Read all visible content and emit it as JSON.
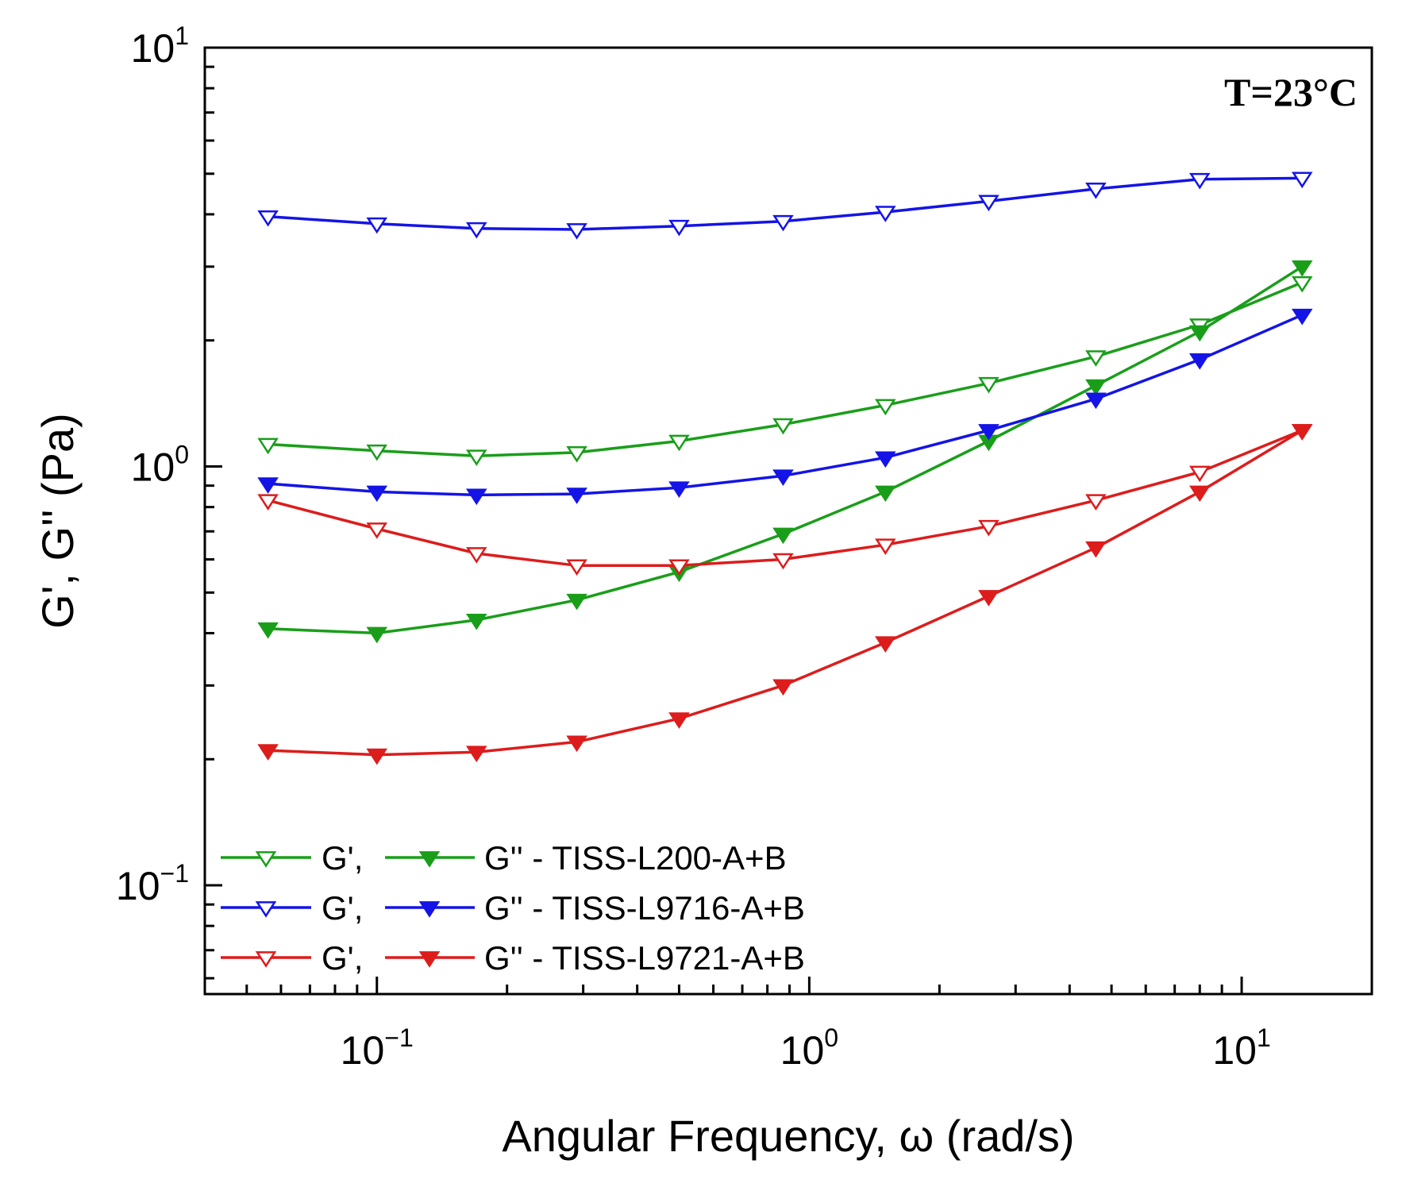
{
  "chart_data": {
    "type": "line",
    "title": "",
    "xlabel": "Angular Frequency, ω (rad/s)",
    "ylabel": "G', G'' (Pa)",
    "xscale": "log",
    "yscale": "log",
    "xlim": [
      0.04,
      20
    ],
    "ylim": [
      0.055,
      10
    ],
    "x_ticks": [
      {
        "value": 0.1,
        "base": "10",
        "exp": "−1"
      },
      {
        "value": 1,
        "base": "10",
        "exp": "0"
      },
      {
        "value": 10,
        "base": "10",
        "exp": "1"
      }
    ],
    "y_ticks": [
      {
        "value": 0.1,
        "base": "10",
        "exp": "−1"
      },
      {
        "value": 1,
        "base": "10",
        "exp": "0"
      },
      {
        "value": 10,
        "base": "10",
        "exp": "1"
      }
    ],
    "annotation": "T=23°C",
    "legend_position": "bottom-left",
    "x": [
      0.056,
      0.1,
      0.17,
      0.29,
      0.5,
      0.87,
      1.5,
      2.6,
      4.6,
      8.0,
      13.8
    ],
    "series": [
      {
        "name": "G' - TISS-L200-A+B",
        "color": "#1a9e1a",
        "marker": "open-triangle-down",
        "values": [
          1.13,
          1.09,
          1.06,
          1.08,
          1.15,
          1.26,
          1.4,
          1.58,
          1.83,
          2.18,
          2.75
        ]
      },
      {
        "name": "G'' - TISS-L200-A+B",
        "color": "#1a9e1a",
        "marker": "filled-triangle-down",
        "values": [
          0.41,
          0.4,
          0.43,
          0.48,
          0.56,
          0.69,
          0.87,
          1.15,
          1.56,
          2.1,
          3.0
        ]
      },
      {
        "name": "G' - TISS-L9716-A+B",
        "color": "#1414e6",
        "marker": "open-triangle-down",
        "values": [
          3.95,
          3.8,
          3.7,
          3.68,
          3.75,
          3.85,
          4.05,
          4.3,
          4.6,
          4.85,
          4.88
        ]
      },
      {
        "name": "G'' - TISS-L9716-A+B",
        "color": "#1414e6",
        "marker": "filled-triangle-down",
        "values": [
          0.91,
          0.87,
          0.855,
          0.86,
          0.89,
          0.95,
          1.05,
          1.22,
          1.45,
          1.8,
          2.3
        ]
      },
      {
        "name": "G' - TISS-L9721-A+B",
        "color": "#dd1c1c",
        "marker": "open-triangle-down",
        "values": [
          0.83,
          0.71,
          0.62,
          0.58,
          0.58,
          0.6,
          0.65,
          0.72,
          0.83,
          0.97,
          1.22
        ]
      },
      {
        "name": "G'' - TISS-L9721-A+B",
        "color": "#dd1c1c",
        "marker": "filled-triangle-down",
        "values": [
          0.21,
          0.205,
          0.208,
          0.22,
          0.25,
          0.3,
          0.38,
          0.49,
          0.64,
          0.87,
          1.22
        ]
      }
    ],
    "legend": [
      {
        "g1": "G',",
        "g2": "G'' - TISS-L200-A+B",
        "color": "#1a9e1a"
      },
      {
        "g1": "G',",
        "g2": "G'' - TISS-L9716-A+B",
        "color": "#1414e6"
      },
      {
        "g1": "G',",
        "g2": "G'' - TISS-L9721-A+B",
        "color": "#dd1c1c"
      }
    ]
  }
}
